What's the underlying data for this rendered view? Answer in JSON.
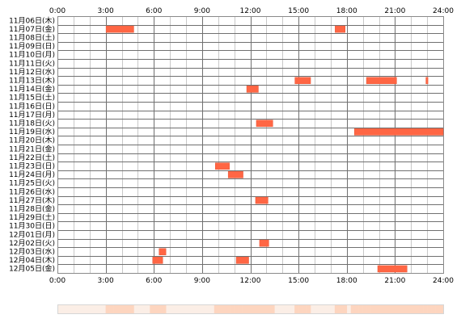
{
  "chart_data": {
    "type": "timeline",
    "x_axis": {
      "ticks": [
        "0:00",
        "3:00",
        "6:00",
        "9:00",
        "12:00",
        "15:00",
        "18:00",
        "21:00",
        "24:00"
      ],
      "range_hours": [
        0,
        24
      ],
      "top_and_bottom": true
    },
    "grid": true,
    "colors": {
      "bar": "#ff6644",
      "bar_stroke": "#e85535",
      "grid_major": "#707070",
      "grid_minor": "#c8c8c8",
      "frame": "#8a8a8a",
      "summary_base": "#fbeee6",
      "summary_cell": "#fdd5bf"
    },
    "rows": [
      {
        "label": "11月06日(木)",
        "intervals": []
      },
      {
        "label": "11月07日(金)",
        "intervals": [
          [
            3.0,
            4.75
          ],
          [
            17.25,
            17.9
          ]
        ]
      },
      {
        "label": "11月08日(土)",
        "intervals": []
      },
      {
        "label": "11月09日(日)",
        "intervals": []
      },
      {
        "label": "11月10日(月)",
        "intervals": []
      },
      {
        "label": "11月11日(火)",
        "intervals": []
      },
      {
        "label": "11月12日(水)",
        "intervals": []
      },
      {
        "label": "11月13日(木)",
        "intervals": [
          [
            14.75,
            15.75
          ],
          [
            19.2,
            21.1
          ],
          [
            22.9,
            23.05
          ]
        ]
      },
      {
        "label": "11月14日(金)",
        "intervals": [
          [
            11.75,
            12.5
          ]
        ]
      },
      {
        "label": "11月15日(土)",
        "intervals": []
      },
      {
        "label": "11月16日(日)",
        "intervals": []
      },
      {
        "label": "11月17日(月)",
        "intervals": []
      },
      {
        "label": "11月18日(火)",
        "intervals": [
          [
            12.35,
            13.4
          ]
        ]
      },
      {
        "label": "11月19日(水)",
        "intervals": [
          [
            18.45,
            24.0
          ]
        ]
      },
      {
        "label": "11月20日(木)",
        "intervals": []
      },
      {
        "label": "11月21日(金)",
        "intervals": []
      },
      {
        "label": "11月22日(土)",
        "intervals": []
      },
      {
        "label": "11月23日(日)",
        "intervals": [
          [
            9.8,
            10.7
          ]
        ]
      },
      {
        "label": "11月24日(月)",
        "intervals": [
          [
            10.6,
            11.55
          ]
        ]
      },
      {
        "label": "11月25日(火)",
        "intervals": []
      },
      {
        "label": "11月26日(水)",
        "intervals": []
      },
      {
        "label": "11月27日(木)",
        "intervals": [
          [
            12.3,
            13.1
          ]
        ]
      },
      {
        "label": "11月28日(金)",
        "intervals": []
      },
      {
        "label": "11月29日(土)",
        "intervals": []
      },
      {
        "label": "11月30日(日)",
        "intervals": []
      },
      {
        "label": "12月01日(月)",
        "intervals": []
      },
      {
        "label": "12月02日(火)",
        "intervals": [
          [
            12.55,
            13.15
          ]
        ]
      },
      {
        "label": "12月03日(水)",
        "intervals": [
          [
            6.3,
            6.75
          ]
        ]
      },
      {
        "label": "12月04日(木)",
        "intervals": [
          [
            5.9,
            6.55
          ],
          [
            11.1,
            11.9
          ]
        ]
      },
      {
        "label": "12月05日(金)",
        "intervals": [
          [
            19.9,
            21.75
          ]
        ]
      }
    ]
  }
}
